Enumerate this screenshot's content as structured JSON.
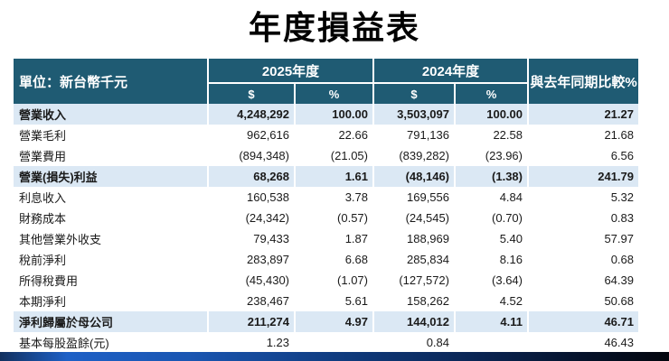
{
  "page": {
    "title": "年度損益表"
  },
  "colors": {
    "header_bg": "#1F5B73",
    "header_text": "#FFFFFF",
    "highlight_bg": "#DBE8F4",
    "bottom_bar_blue": "#1E60C6",
    "bottom_bar_dark": "#03060E"
  },
  "table": {
    "unit_label": "單位：新台幣千元",
    "col_year_2025": "2025年度",
    "col_year_2024": "2024年度",
    "col_compare": "與去年同期比較%",
    "sub_amount": "$",
    "sub_percent": "%",
    "rows": [
      {
        "label": "營業收入",
        "y2025_amount": "4,248,292",
        "y2025_pct": "100.00",
        "y2024_amount": "3,503,097",
        "y2024_pct": "100.00",
        "yoy": "21.27",
        "highlight": true
      },
      {
        "label": "營業毛利",
        "y2025_amount": "962,616",
        "y2025_pct": "22.66",
        "y2024_amount": "791,136",
        "y2024_pct": "22.58",
        "yoy": "21.68",
        "highlight": false
      },
      {
        "label": "營業費用",
        "y2025_amount": "(894,348)",
        "y2025_pct": "(21.05)",
        "y2024_amount": "(839,282)",
        "y2024_pct": "(23.96)",
        "yoy": "6.56",
        "highlight": false
      },
      {
        "label": "營業(損失)利益",
        "y2025_amount": "68,268",
        "y2025_pct": "1.61",
        "y2024_amount": "(48,146)",
        "y2024_pct": "(1.38)",
        "yoy": "241.79",
        "highlight": true
      },
      {
        "label": "利息收入",
        "y2025_amount": "160,538",
        "y2025_pct": "3.78",
        "y2024_amount": "169,556",
        "y2024_pct": "4.84",
        "yoy": "5.32",
        "highlight": false
      },
      {
        "label": "財務成本",
        "y2025_amount": "(24,342)",
        "y2025_pct": "(0.57)",
        "y2024_amount": "(24,545)",
        "y2024_pct": "(0.70)",
        "yoy": "0.83",
        "highlight": false
      },
      {
        "label": "其他營業外收支",
        "y2025_amount": "79,433",
        "y2025_pct": "1.87",
        "y2024_amount": "188,969",
        "y2024_pct": "5.40",
        "yoy": "57.97",
        "highlight": false
      },
      {
        "label": "稅前淨利",
        "y2025_amount": "283,897",
        "y2025_pct": "6.68",
        "y2024_amount": "285,834",
        "y2024_pct": "8.16",
        "yoy": "0.68",
        "highlight": false
      },
      {
        "label": "所得稅費用",
        "y2025_amount": "(45,430)",
        "y2025_pct": "(1.07)",
        "y2024_amount": "(127,572)",
        "y2024_pct": "(3.64)",
        "yoy": "64.39",
        "highlight": false
      },
      {
        "label": "本期淨利",
        "y2025_amount": "238,467",
        "y2025_pct": "5.61",
        "y2024_amount": "158,262",
        "y2024_pct": "4.52",
        "yoy": "50.68",
        "highlight": false
      },
      {
        "label": "淨利歸屬於母公司",
        "y2025_amount": "211,274",
        "y2025_pct": "4.97",
        "y2024_amount": "144,012",
        "y2024_pct": "4.11",
        "yoy": "46.71",
        "highlight": true
      },
      {
        "label": "基本每股盈餘(元)",
        "y2025_amount": "1.23",
        "y2025_pct": "",
        "y2024_amount": "0.84",
        "y2024_pct": "",
        "yoy": "46.43",
        "highlight": false
      }
    ]
  }
}
